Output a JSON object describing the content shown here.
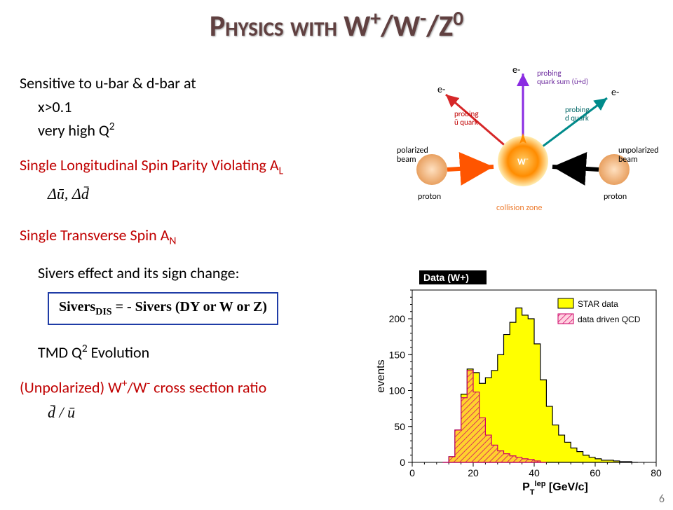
{
  "title_parts": {
    "p1": "Physics with W",
    "p2": "+",
    "p3": "/W",
    "p4": "-",
    "p5": "/Z",
    "p6": "0"
  },
  "text": {
    "sens1": "Sensitive to u-bar & d-bar at",
    "sens2": "x>0.1",
    "sens3_a": "very high Q",
    "sens3_b": "2",
    "long_a": "Single Longitudinal Spin Parity Violating A",
    "long_b": "L",
    "eq1_a": "Δū",
    "eq1_b": ", ",
    "eq1_c": "Δd̄",
    "trans_a": "Single Transverse Spin A",
    "trans_b": "N",
    "sivers_intro": "Sivers effect and its sign change:",
    "sivers_box_a": "Sivers",
    "sivers_box_b": "DIS",
    "sivers_box_c": " = - Sivers (DY or W or Z)",
    "tmd_a": "TMD Q",
    "tmd_b": "2",
    "tmd_c": " Evolution",
    "unpol_a": "(Unpolarized) W",
    "unpol_b": "+",
    "unpol_c": "/W",
    "unpol_d": "-",
    "unpol_e": " cross section ratio",
    "eq2": "d̄ / ū"
  },
  "diagram": {
    "labels": {
      "e1": "e-",
      "e2": "e-",
      "e3": "e-",
      "probing_ubar": "probing\nū quark",
      "probing_sum": "probing\nquark sum (ū+d)",
      "probing_d": "probing\nd quark",
      "W": "W⁻",
      "polarized": "polarized\nbeam",
      "unpolarized": "unpolarized\nbeam",
      "proton1": "proton",
      "proton2": "proton",
      "collision": "collision zone"
    },
    "colors": {
      "arrow_red": "#d62728",
      "arrow_purple": "#8a2be2",
      "arrow_teal": "#008b8b",
      "beam_red": "#ff5500",
      "beam_black": "#000000",
      "collision_center": "#ff8c00",
      "collision_outer": "#ffd966",
      "proton": "#f4b183",
      "text_purple": "#7030a0",
      "text_red": "#c00000",
      "text_teal": "#006666",
      "text_orange": "#ed7d31"
    }
  },
  "chart": {
    "title": "Data (W+)",
    "ylabel": "events",
    "xlabel_a": "P",
    "xlabel_sub": "T",
    "xlabel_sup": "lep",
    "xlabel_unit": "  [GeV/c]",
    "xlim": [
      0,
      80
    ],
    "ylim": [
      0,
      240
    ],
    "xticks": [
      0,
      20,
      40,
      60,
      80
    ],
    "yticks": [
      0,
      50,
      100,
      150,
      200
    ],
    "legend": {
      "star": "STAR data",
      "qcd": "data driven QCD"
    },
    "colors": {
      "star_fill": "#ffff00",
      "star_line": "#000000",
      "qcd_fill": "#ff6699",
      "qcd_hatch": "#cc0066",
      "axis": "#000000",
      "title_bg": "#000000",
      "title_fg": "#ffffff"
    },
    "bin_width": 2,
    "star_data": [
      [
        10,
        0
      ],
      [
        12,
        8
      ],
      [
        14,
        45
      ],
      [
        16,
        95
      ],
      [
        18,
        130
      ],
      [
        20,
        125
      ],
      [
        22,
        110
      ],
      [
        24,
        118
      ],
      [
        26,
        128
      ],
      [
        28,
        150
      ],
      [
        30,
        178
      ],
      [
        32,
        195
      ],
      [
        34,
        215
      ],
      [
        36,
        205
      ],
      [
        38,
        200
      ],
      [
        40,
        165
      ],
      [
        42,
        115
      ],
      [
        44,
        78
      ],
      [
        46,
        52
      ],
      [
        48,
        38
      ],
      [
        50,
        28
      ],
      [
        52,
        20
      ],
      [
        54,
        15
      ],
      [
        56,
        10
      ],
      [
        58,
        7
      ],
      [
        60,
        5
      ],
      [
        62,
        3
      ],
      [
        64,
        3
      ],
      [
        66,
        2
      ],
      [
        68,
        1
      ],
      [
        70,
        1
      ],
      [
        72,
        0
      ]
    ],
    "qcd_data": [
      [
        10,
        0
      ],
      [
        12,
        8
      ],
      [
        14,
        45
      ],
      [
        16,
        90
      ],
      [
        18,
        128
      ],
      [
        20,
        98
      ],
      [
        22,
        62
      ],
      [
        24,
        38
      ],
      [
        26,
        24
      ],
      [
        28,
        16
      ],
      [
        30,
        12
      ],
      [
        32,
        9
      ],
      [
        34,
        7
      ],
      [
        36,
        5
      ],
      [
        38,
        4
      ],
      [
        40,
        2
      ],
      [
        42,
        0
      ]
    ]
  },
  "page_number": "6"
}
